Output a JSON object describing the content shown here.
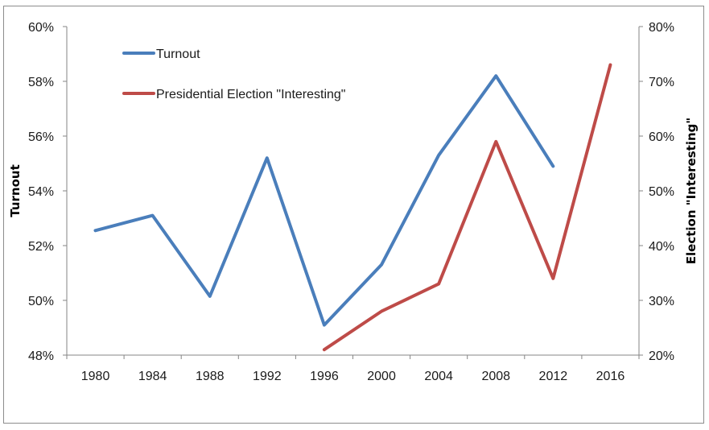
{
  "chart_data": {
    "type": "line",
    "title": "",
    "categories": [
      "1980",
      "1984",
      "1988",
      "1992",
      "1996",
      "2000",
      "2004",
      "2008",
      "2012",
      "2016"
    ],
    "series": [
      {
        "name": "Turnout",
        "axis": "left",
        "color": "#4a7ebb",
        "values": [
          52.55,
          53.1,
          50.15,
          55.2,
          49.1,
          51.3,
          55.3,
          58.2,
          54.9,
          null
        ]
      },
      {
        "name": "Presidential Election \"Interesting\"",
        "axis": "right",
        "color": "#be4b48",
        "values": [
          null,
          null,
          null,
          null,
          21,
          28,
          33,
          59,
          34,
          73
        ]
      }
    ],
    "xlabel": "",
    "ylabel": "Turnout",
    "y2label": "Election \"Interesting\"",
    "ylim": [
      48,
      60
    ],
    "y2lim": [
      20,
      80
    ],
    "yticks": [
      "48%",
      "50%",
      "52%",
      "54%",
      "56%",
      "58%",
      "60%"
    ],
    "y2ticks": [
      "20%",
      "30%",
      "40%",
      "50%",
      "60%",
      "70%",
      "80%"
    ],
    "grid": false,
    "legend_position": "upper-left-inside"
  },
  "legend": {
    "items": [
      {
        "label": "Turnout",
        "color": "#4a7ebb"
      },
      {
        "label": "Presidential Election \"Interesting\"",
        "color": "#be4b48"
      }
    ]
  },
  "axes": {
    "left_title": "Turnout",
    "right_title": "Election \"Interesting\""
  }
}
